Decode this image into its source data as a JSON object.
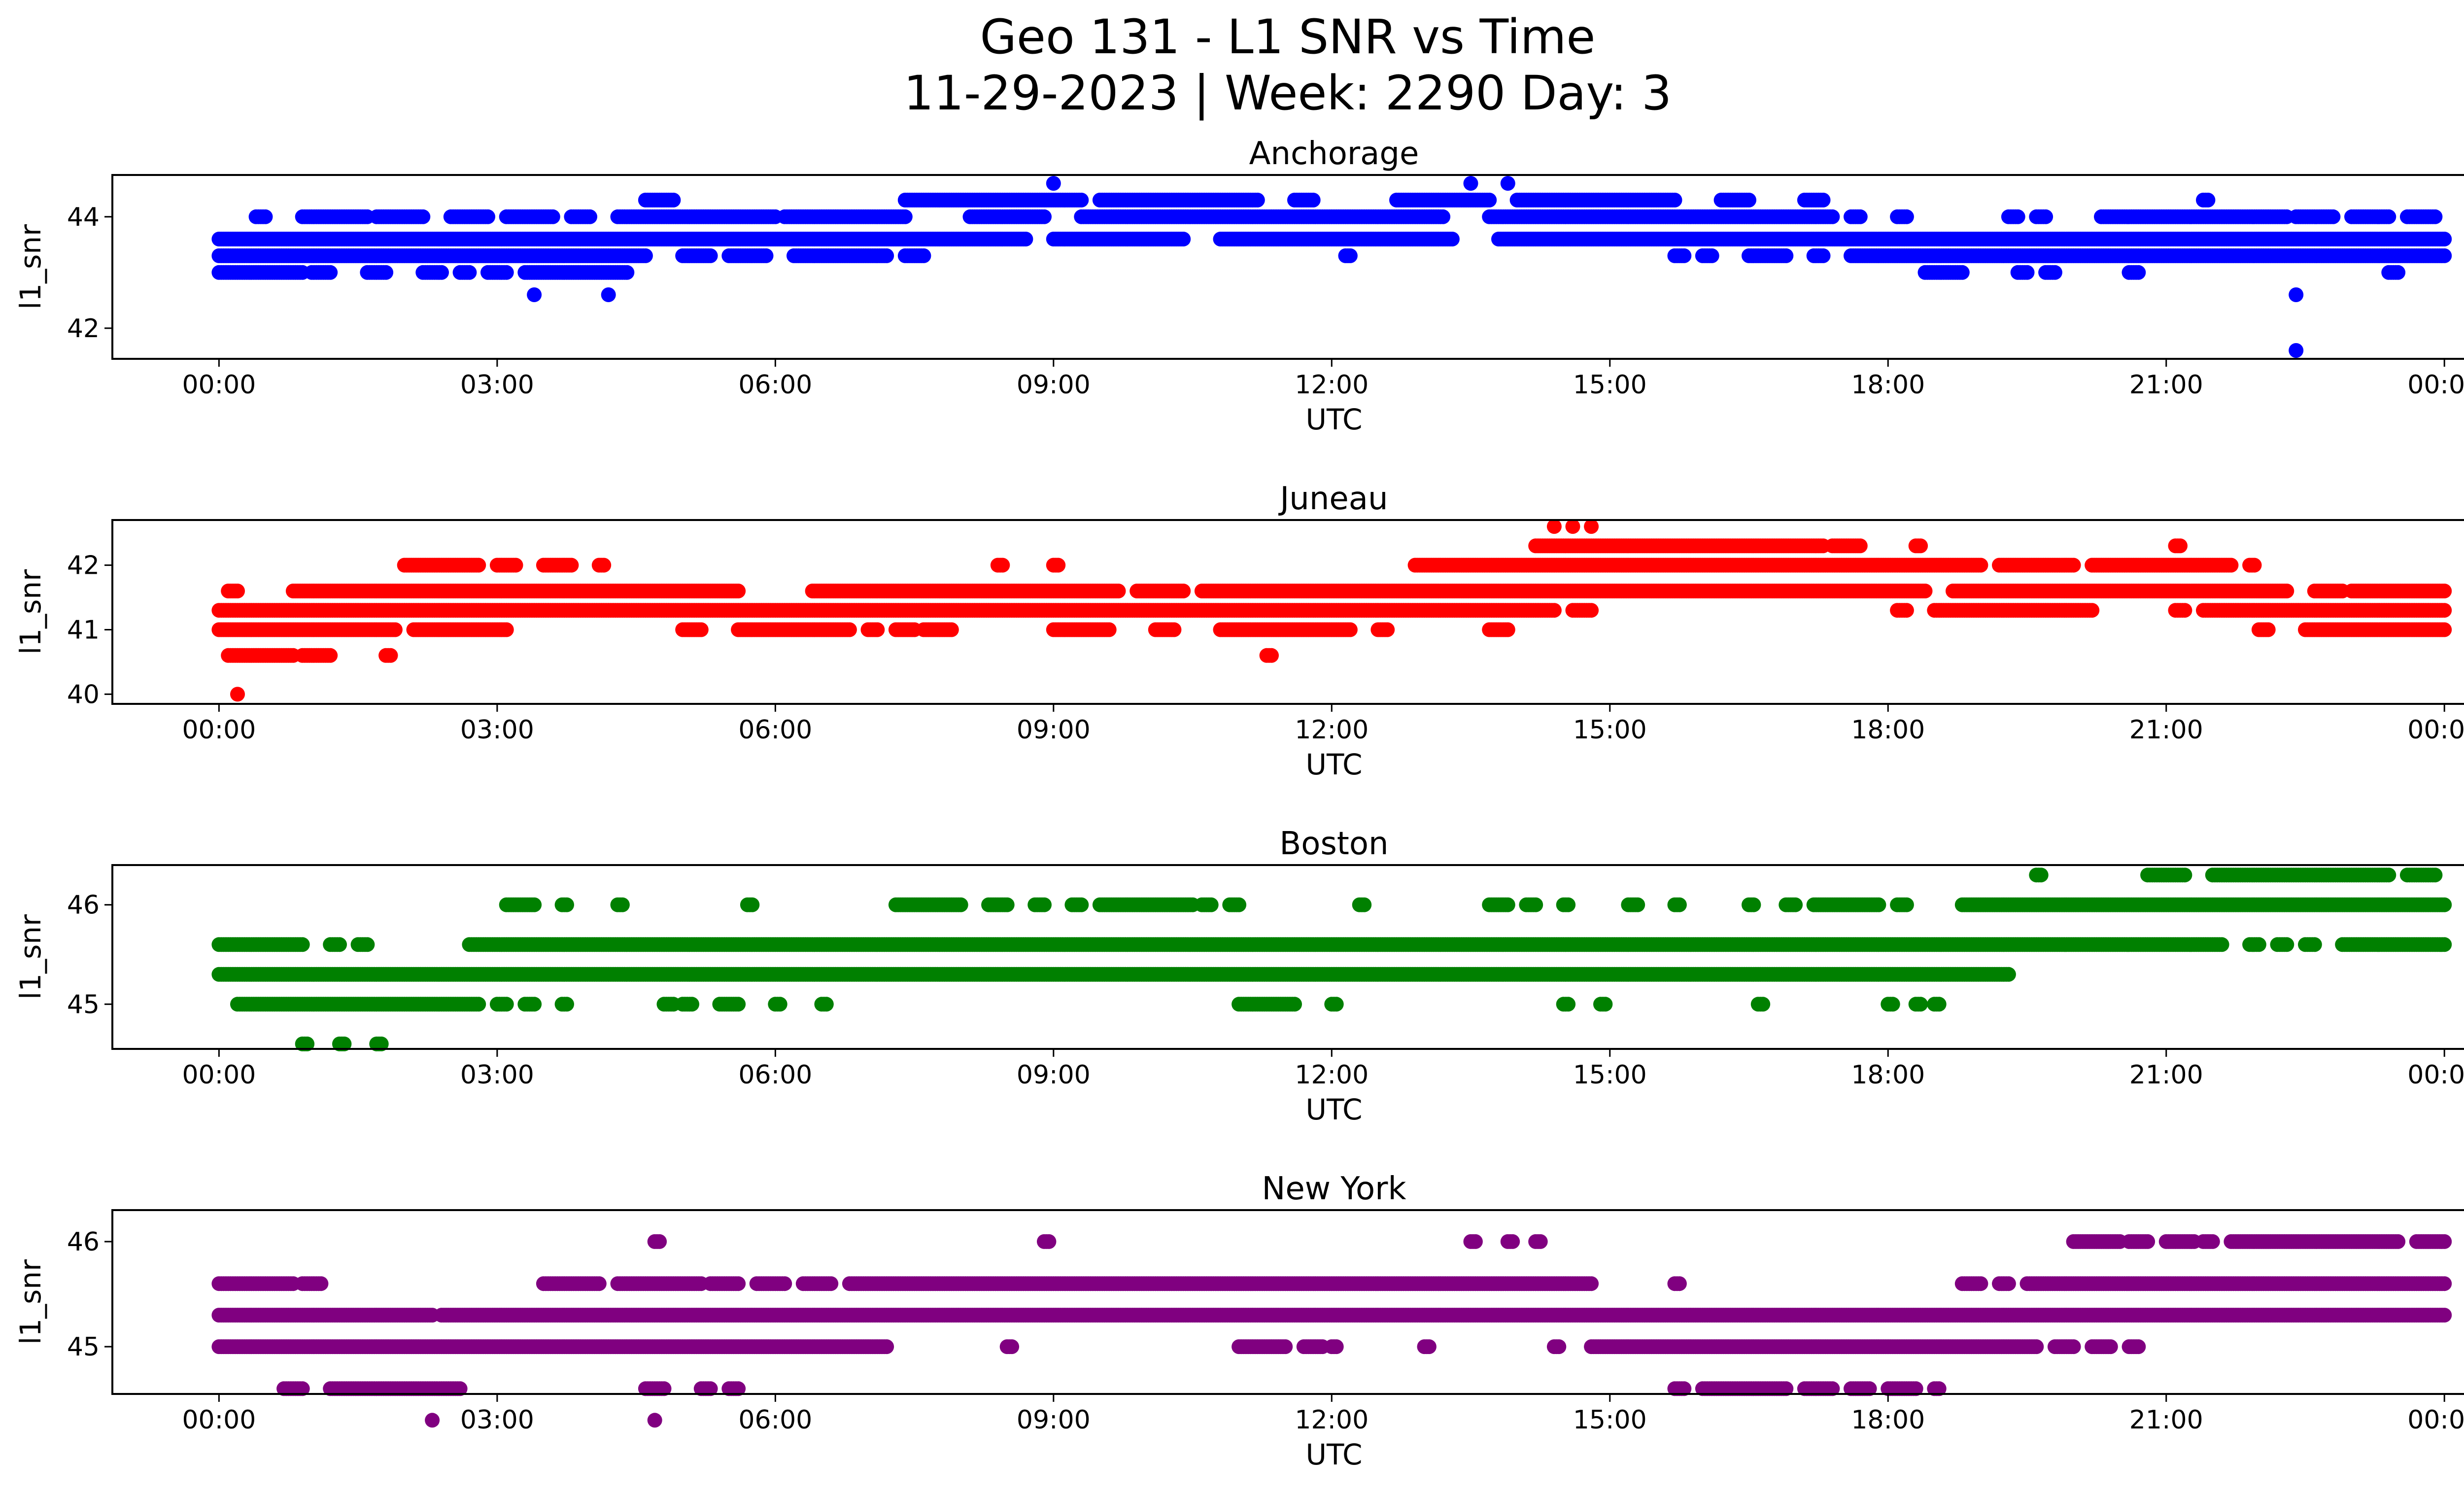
{
  "title_line1": "Geo 131 - L1 SNR vs Time",
  "title_line2": "11-29-2023 | Week: 2290 Day: 3",
  "chart_data": [
    {
      "type": "scatter",
      "title": "Anchorage",
      "xlabel": "UTC",
      "ylabel": "l1_snr",
      "color": "#0000ff",
      "xlim_hours": [
        -1.15,
        25.2
      ],
      "ylim": [
        41.45,
        44.75
      ],
      "xticks": [
        "00:00",
        "03:00",
        "06:00",
        "09:00",
        "12:00",
        "15:00",
        "18:00",
        "21:00",
        "00:00"
      ],
      "yticks": [
        42,
        44
      ],
      "bands": [
        {
          "y": 43.0,
          "ranges": [
            [
              0,
              0.9
            ],
            [
              1.0,
              1.2
            ],
            [
              1.6,
              1.8
            ],
            [
              2.2,
              2.4
            ],
            [
              2.6,
              2.7
            ],
            [
              2.9,
              3.1
            ],
            [
              3.3,
              4.4
            ],
            [
              18.4,
              18.8
            ],
            [
              19.4,
              19.5
            ],
            [
              19.7,
              19.8
            ],
            [
              20.6,
              20.7
            ],
            [
              23.4,
              23.5
            ]
          ]
        },
        {
          "y": 43.3,
          "ranges": [
            [
              0,
              4.6
            ],
            [
              5.0,
              5.3
            ],
            [
              5.5,
              5.9
            ],
            [
              6.2,
              7.2
            ],
            [
              7.4,
              7.6
            ],
            [
              12.15,
              12.2
            ],
            [
              15.7,
              15.8
            ],
            [
              16.0,
              16.1
            ],
            [
              16.5,
              16.9
            ],
            [
              17.2,
              17.3
            ],
            [
              17.6,
              24.0
            ]
          ]
        },
        {
          "y": 43.6,
          "ranges": [
            [
              0,
              8.7
            ],
            [
              9.0,
              10.4
            ],
            [
              10.8,
              13.3
            ],
            [
              13.8,
              24.0
            ]
          ]
        },
        {
          "y": 44.0,
          "ranges": [
            [
              0.4,
              0.5
            ],
            [
              0.9,
              1.6
            ],
            [
              1.7,
              2.2
            ],
            [
              2.5,
              2.9
            ],
            [
              3.1,
              3.6
            ],
            [
              3.8,
              4.0
            ],
            [
              4.3,
              6.0
            ],
            [
              6.1,
              7.4
            ],
            [
              8.1,
              8.9
            ],
            [
              9.3,
              13.2
            ],
            [
              13.7,
              17.4
            ],
            [
              17.6,
              17.7
            ],
            [
              18.1,
              18.2
            ],
            [
              19.3,
              19.4
            ],
            [
              19.6,
              19.7
            ],
            [
              20.3,
              22.3
            ],
            [
              22.4,
              22.8
            ],
            [
              23.0,
              23.4
            ],
            [
              23.6,
              23.9
            ]
          ]
        },
        {
          "y": 44.3,
          "ranges": [
            [
              4.6,
              4.9
            ],
            [
              7.4,
              9.3
            ],
            [
              9.5,
              11.2
            ],
            [
              11.6,
              11.8
            ],
            [
              12.7,
              13.7
            ],
            [
              14.0,
              15.7
            ],
            [
              16.2,
              16.5
            ],
            [
              17.1,
              17.3
            ],
            [
              21.4,
              21.45
            ]
          ]
        }
      ],
      "outliers": [
        [
          9.0,
          44.6
        ],
        [
          13.5,
          44.6
        ],
        [
          13.9,
          44.6
        ],
        [
          3.4,
          42.6
        ],
        [
          4.2,
          42.6
        ],
        [
          22.4,
          42.6
        ],
        [
          22.4,
          41.6
        ]
      ]
    },
    {
      "type": "scatter",
      "title": "Juneau",
      "xlabel": "UTC",
      "ylabel": "l1_snr",
      "color": "#ff0000",
      "xlim_hours": [
        -1.15,
        25.2
      ],
      "ylim": [
        39.85,
        42.7
      ],
      "xticks": [
        "00:00",
        "03:00",
        "06:00",
        "09:00",
        "12:00",
        "15:00",
        "18:00",
        "21:00",
        "00:00"
      ],
      "yticks": [
        40,
        41,
        42
      ],
      "bands": [
        {
          "y": 40.6,
          "ranges": [
            [
              0.1,
              0.8
            ],
            [
              0.9,
              1.2
            ],
            [
              1.8,
              1.85
            ],
            [
              11.3,
              11.35
            ]
          ]
        },
        {
          "y": 41.0,
          "ranges": [
            [
              0,
              1.9
            ],
            [
              2.1,
              3.1
            ],
            [
              5.0,
              5.2
            ],
            [
              5.6,
              6.8
            ],
            [
              7.0,
              7.1
            ],
            [
              7.3,
              7.5
            ],
            [
              7.6,
              7.9
            ],
            [
              9.0,
              9.6
            ],
            [
              10.1,
              10.3
            ],
            [
              10.8,
              12.2
            ],
            [
              12.5,
              12.6
            ],
            [
              13.7,
              13.9
            ],
            [
              22.0,
              22.1
            ],
            [
              22.5,
              24.0
            ]
          ]
        },
        {
          "y": 41.3,
          "ranges": [
            [
              0,
              14.4
            ],
            [
              14.6,
              14.8
            ],
            [
              18.1,
              18.2
            ],
            [
              18.5,
              20.2
            ],
            [
              21.1,
              21.2
            ],
            [
              21.4,
              24.0
            ]
          ]
        },
        {
          "y": 41.6,
          "ranges": [
            [
              0.1,
              0.2
            ],
            [
              0.8,
              5.6
            ],
            [
              6.4,
              9.7
            ],
            [
              9.9,
              10.4
            ],
            [
              10.6,
              18.4
            ],
            [
              18.7,
              22.3
            ],
            [
              22.6,
              22.9
            ],
            [
              23.0,
              24.0
            ]
          ]
        },
        {
          "y": 42.0,
          "ranges": [
            [
              2.0,
              2.8
            ],
            [
              3.0,
              3.2
            ],
            [
              3.5,
              3.8
            ],
            [
              4.1,
              4.15
            ],
            [
              8.4,
              8.45
            ],
            [
              9.0,
              9.05
            ],
            [
              12.9,
              19.0
            ],
            [
              19.2,
              20.0
            ],
            [
              20.2,
              21.7
            ],
            [
              21.9,
              21.95
            ]
          ]
        },
        {
          "y": 42.3,
          "ranges": [
            [
              14.2,
              17.3
            ],
            [
              17.4,
              17.7
            ],
            [
              18.3,
              18.35
            ],
            [
              21.1,
              21.15
            ]
          ]
        }
      ],
      "outliers": [
        [
          0.2,
          40.0
        ],
        [
          14.4,
          42.6
        ],
        [
          14.6,
          42.6
        ],
        [
          14.8,
          42.6
        ]
      ]
    },
    {
      "type": "scatter",
      "title": "Boston",
      "xlabel": "UTC",
      "ylabel": "l1_snr",
      "color": "#008000",
      "xlim_hours": [
        -1.15,
        25.2
      ],
      "ylim": [
        44.55,
        46.4
      ],
      "xticks": [
        "00:00",
        "03:00",
        "06:00",
        "09:00",
        "12:00",
        "15:00",
        "18:00",
        "21:00",
        "00:00"
      ],
      "yticks": [
        45,
        46
      ],
      "bands": [
        {
          "y": 44.6,
          "ranges": [
            [
              0.9,
              0.95
            ],
            [
              1.3,
              1.35
            ],
            [
              1.7,
              1.75
            ]
          ]
        },
        {
          "y": 45.0,
          "ranges": [
            [
              0.2,
              2.8
            ],
            [
              3.0,
              3.1
            ],
            [
              3.3,
              3.4
            ],
            [
              3.7,
              3.75
            ],
            [
              4.8,
              4.9
            ],
            [
              5.0,
              5.1
            ],
            [
              5.4,
              5.6
            ],
            [
              6.0,
              6.05
            ],
            [
              6.5,
              6.55
            ],
            [
              11.0,
              11.6
            ],
            [
              12.0,
              12.05
            ],
            [
              14.5,
              14.55
            ],
            [
              14.9,
              14.95
            ],
            [
              16.6,
              16.65
            ],
            [
              18.0,
              18.05
            ],
            [
              18.3,
              18.35
            ],
            [
              18.5,
              18.55
            ]
          ]
        },
        {
          "y": 45.3,
          "ranges": [
            [
              0,
              19.3
            ]
          ]
        },
        {
          "y": 45.6,
          "ranges": [
            [
              0,
              0.9
            ],
            [
              1.2,
              1.3
            ],
            [
              1.5,
              1.6
            ],
            [
              2.7,
              21.6
            ],
            [
              21.9,
              22.0
            ],
            [
              22.2,
              22.3
            ],
            [
              22.5,
              22.6
            ],
            [
              22.9,
              24.0
            ]
          ]
        },
        {
          "y": 46.0,
          "ranges": [
            [
              3.1,
              3.4
            ],
            [
              3.7,
              3.75
            ],
            [
              4.3,
              4.35
            ],
            [
              5.7,
              5.75
            ],
            [
              7.3,
              8.0
            ],
            [
              8.3,
              8.5
            ],
            [
              8.8,
              8.9
            ],
            [
              9.2,
              9.3
            ],
            [
              9.5,
              10.5
            ],
            [
              10.6,
              10.7
            ],
            [
              10.9,
              11.0
            ],
            [
              12.3,
              12.35
            ],
            [
              13.7,
              13.9
            ],
            [
              14.1,
              14.2
            ],
            [
              14.5,
              14.55
            ],
            [
              15.2,
              15.3
            ],
            [
              15.7,
              15.75
            ],
            [
              16.5,
              16.55
            ],
            [
              16.9,
              17.0
            ],
            [
              17.2,
              17.9
            ],
            [
              18.1,
              18.2
            ],
            [
              18.8,
              24.0
            ]
          ]
        },
        {
          "y": 46.3,
          "ranges": [
            [
              19.6,
              19.65
            ],
            [
              20.8,
              21.2
            ],
            [
              21.5,
              23.4
            ],
            [
              23.6,
              23.9
            ]
          ]
        }
      ],
      "outliers": []
    },
    {
      "type": "scatter",
      "title": "New York",
      "xlabel": "UTC",
      "ylabel": "l1_snr",
      "color": "#800080",
      "xlim_hours": [
        -1.15,
        25.2
      ],
      "ylim": [
        44.55,
        46.3
      ],
      "xticks": [
        "00:00",
        "03:00",
        "06:00",
        "09:00",
        "12:00",
        "15:00",
        "18:00",
        "21:00",
        "00:00"
      ],
      "yticks": [
        45,
        46
      ],
      "bands": [
        {
          "y": 44.6,
          "ranges": [
            [
              0.7,
              0.9
            ],
            [
              1.2,
              2.6
            ],
            [
              4.6,
              4.8
            ],
            [
              5.2,
              5.3
            ],
            [
              5.5,
              5.6
            ],
            [
              15.7,
              15.8
            ],
            [
              16.0,
              16.9
            ],
            [
              17.1,
              17.4
            ],
            [
              17.6,
              17.8
            ],
            [
              18.0,
              18.3
            ],
            [
              18.5,
              18.55
            ]
          ]
        },
        {
          "y": 45.0,
          "ranges": [
            [
              0,
              7.2
            ],
            [
              8.5,
              8.55
            ],
            [
              11.0,
              11.5
            ],
            [
              11.7,
              11.9
            ],
            [
              12.0,
              12.05
            ],
            [
              13.0,
              13.05
            ],
            [
              14.4,
              14.45
            ],
            [
              14.8,
              19.6
            ],
            [
              19.8,
              20.0
            ],
            [
              20.2,
              20.4
            ],
            [
              20.6,
              20.7
            ]
          ]
        },
        {
          "y": 45.3,
          "ranges": [
            [
              0,
              2.3
            ],
            [
              2.4,
              24.0
            ]
          ]
        },
        {
          "y": 45.6,
          "ranges": [
            [
              0,
              0.8
            ],
            [
              0.9,
              1.1
            ],
            [
              3.5,
              4.1
            ],
            [
              4.3,
              5.2
            ],
            [
              5.3,
              5.6
            ],
            [
              5.8,
              6.1
            ],
            [
              6.3,
              6.6
            ],
            [
              6.8,
              14.8
            ],
            [
              15.7,
              15.75
            ],
            [
              18.8,
              19.0
            ],
            [
              19.2,
              19.3
            ],
            [
              19.5,
              24.0
            ]
          ]
        },
        {
          "y": 46.0,
          "ranges": [
            [
              4.7,
              4.75
            ],
            [
              8.9,
              8.95
            ],
            [
              13.5,
              13.55
            ],
            [
              13.9,
              13.95
            ],
            [
              14.2,
              14.25
            ],
            [
              20.0,
              20.5
            ],
            [
              20.6,
              20.8
            ],
            [
              21.0,
              21.3
            ],
            [
              21.4,
              21.5
            ],
            [
              21.7,
              23.5
            ],
            [
              23.7,
              24.0
            ]
          ]
        }
      ],
      "outliers": [
        [
          2.3,
          44.3
        ],
        [
          4.7,
          44.3
        ]
      ]
    }
  ]
}
